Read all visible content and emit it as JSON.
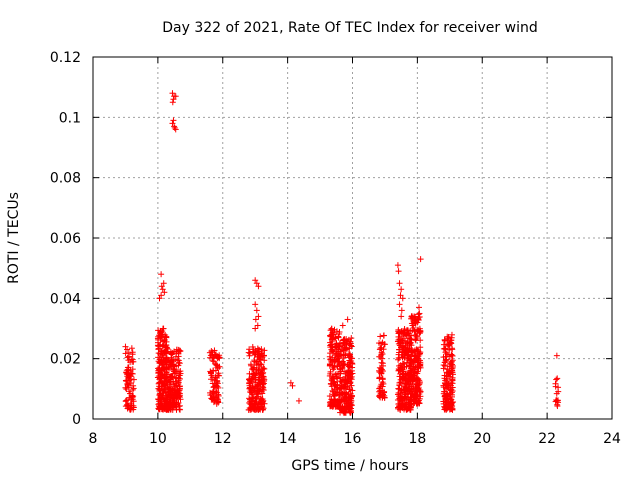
{
  "chart_data": {
    "type": "scatter",
    "title": "Day 322 of 2021, Rate Of TEC Index for receiver wind",
    "xlabel": "GPS time / hours",
    "ylabel": "ROTI / TECUs",
    "xlim": [
      8,
      24
    ],
    "ylim": [
      0,
      0.12
    ],
    "x_ticks": [
      "8",
      "10",
      "12",
      "14",
      "16",
      "18",
      "20",
      "22",
      "24"
    ],
    "y_ticks": [
      "0",
      "0.02",
      "0.04",
      "0.06",
      "0.08",
      "0.1",
      "0.12"
    ],
    "grid": true,
    "marker": "+",
    "color": "#ff0000",
    "clusters": [
      {
        "x_range": [
          9.0,
          9.3
        ],
        "y_range": [
          0.003,
          0.024
        ],
        "count": 90
      },
      {
        "x_range": [
          10.0,
          10.3
        ],
        "y_range": [
          0.003,
          0.03
        ],
        "count": 230
      },
      {
        "x_range": [
          10.3,
          10.7
        ],
        "y_range": [
          0.003,
          0.023
        ],
        "count": 190
      },
      {
        "x_range": [
          11.6,
          11.9
        ],
        "y_range": [
          0.005,
          0.023
        ],
        "count": 80
      },
      {
        "x_range": [
          12.8,
          13.3
        ],
        "y_range": [
          0.003,
          0.024
        ],
        "count": 220
      },
      {
        "x_range": [
          15.3,
          15.6
        ],
        "y_range": [
          0.004,
          0.03
        ],
        "count": 160
      },
      {
        "x_range": [
          15.6,
          16.0
        ],
        "y_range": [
          0.002,
          0.027
        ],
        "count": 230
      },
      {
        "x_range": [
          16.8,
          17.0
        ],
        "y_range": [
          0.007,
          0.028
        ],
        "count": 60
      },
      {
        "x_range": [
          17.4,
          17.8
        ],
        "y_range": [
          0.003,
          0.03
        ],
        "count": 280
      },
      {
        "x_range": [
          17.8,
          18.1
        ],
        "y_range": [
          0.005,
          0.035
        ],
        "count": 200
      },
      {
        "x_range": [
          18.8,
          19.1
        ],
        "y_range": [
          0.003,
          0.028
        ],
        "count": 170
      },
      {
        "x_range": [
          22.25,
          22.35
        ],
        "y_range": [
          0.004,
          0.014
        ],
        "count": 14
      }
    ],
    "points": [
      {
        "x": 10.45,
        "y": 0.108
      },
      {
        "x": 10.5,
        "y": 0.107
      },
      {
        "x": 10.48,
        "y": 0.106
      },
      {
        "x": 10.55,
        "y": 0.107
      },
      {
        "x": 10.46,
        "y": 0.105
      },
      {
        "x": 10.45,
        "y": 0.098
      },
      {
        "x": 10.5,
        "y": 0.097
      },
      {
        "x": 10.55,
        "y": 0.096
      },
      {
        "x": 10.48,
        "y": 0.099
      },
      {
        "x": 10.52,
        "y": 0.0965
      },
      {
        "x": 10.1,
        "y": 0.048
      },
      {
        "x": 10.12,
        "y": 0.044
      },
      {
        "x": 10.15,
        "y": 0.043
      },
      {
        "x": 10.18,
        "y": 0.045
      },
      {
        "x": 10.1,
        "y": 0.041
      },
      {
        "x": 10.2,
        "y": 0.042
      },
      {
        "x": 10.05,
        "y": 0.04
      },
      {
        "x": 13.0,
        "y": 0.046
      },
      {
        "x": 13.05,
        "y": 0.045
      },
      {
        "x": 13.1,
        "y": 0.044
      },
      {
        "x": 13.0,
        "y": 0.038
      },
      {
        "x": 13.05,
        "y": 0.036
      },
      {
        "x": 13.1,
        "y": 0.034
      },
      {
        "x": 13.02,
        "y": 0.033
      },
      {
        "x": 13.08,
        "y": 0.031
      },
      {
        "x": 13.0,
        "y": 0.03
      },
      {
        "x": 14.1,
        "y": 0.012
      },
      {
        "x": 14.15,
        "y": 0.011
      },
      {
        "x": 14.35,
        "y": 0.006
      },
      {
        "x": 15.85,
        "y": 0.033
      },
      {
        "x": 15.7,
        "y": 0.031
      },
      {
        "x": 17.4,
        "y": 0.051
      },
      {
        "x": 17.42,
        "y": 0.049
      },
      {
        "x": 17.45,
        "y": 0.045
      },
      {
        "x": 17.5,
        "y": 0.043
      },
      {
        "x": 17.48,
        "y": 0.041
      },
      {
        "x": 17.55,
        "y": 0.04
      },
      {
        "x": 17.45,
        "y": 0.038
      },
      {
        "x": 17.52,
        "y": 0.036
      },
      {
        "x": 17.5,
        "y": 0.034
      },
      {
        "x": 17.9,
        "y": 0.034
      },
      {
        "x": 17.95,
        "y": 0.033
      },
      {
        "x": 18.0,
        "y": 0.032
      },
      {
        "x": 18.05,
        "y": 0.037
      },
      {
        "x": 18.1,
        "y": 0.053
      },
      {
        "x": 17.85,
        "y": 0.031
      },
      {
        "x": 22.3,
        "y": 0.021
      }
    ]
  }
}
